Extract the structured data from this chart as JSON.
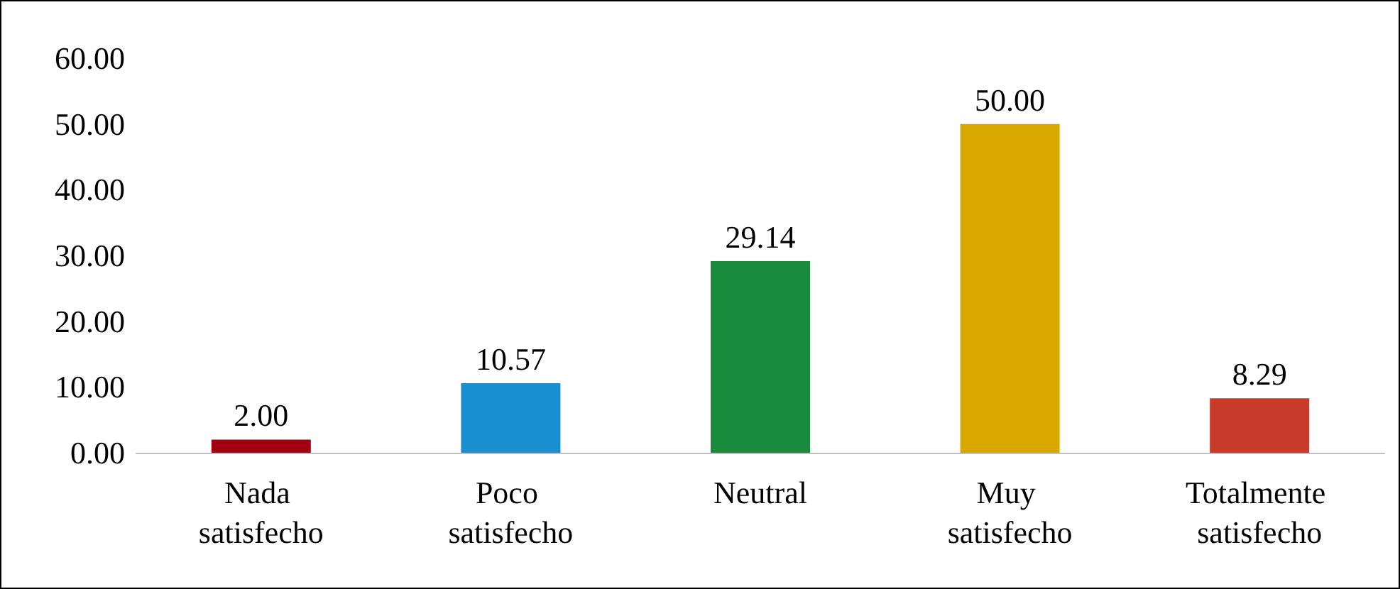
{
  "chart_data": {
    "type": "bar",
    "categories": [
      "Nada satisfecho",
      "Poco satisfecho",
      "Neutral",
      "Muy satisfecho",
      "Totalmente satisfecho"
    ],
    "values": [
      2.0,
      10.57,
      29.14,
      50.0,
      8.29
    ],
    "value_labels": [
      "2.00",
      "10.57",
      "29.14",
      "50.00",
      "8.29"
    ],
    "colors": [
      "#a00010",
      "#1a8fd0",
      "#1a8a3c",
      "#d8a800",
      "#c83a2a"
    ],
    "ylim": [
      0,
      60
    ],
    "yticks": [
      {
        "value": 0,
        "label": "0.00"
      },
      {
        "value": 10,
        "label": "10.00"
      },
      {
        "value": 20,
        "label": "20.00"
      },
      {
        "value": 30,
        "label": "30.00"
      },
      {
        "value": 40,
        "label": "40.00"
      },
      {
        "value": 50,
        "label": "50.00"
      },
      {
        "value": 60,
        "label": "60.00"
      }
    ],
    "grid": false
  }
}
